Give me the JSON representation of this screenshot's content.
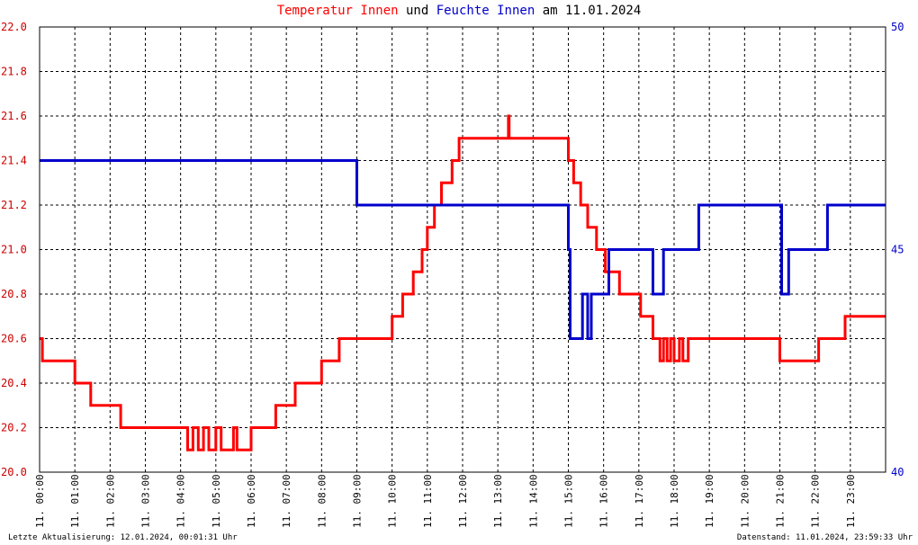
{
  "title": {
    "part1": "Temperatur Innen",
    "part2": " und ",
    "part3": "Feuchte Innen",
    "part4": " am 11.01.2024",
    "color1": "#ff0000",
    "color2": "#000000",
    "color3": "#0000cc",
    "color4": "#000000"
  },
  "footer": {
    "left": "Letzte Aktualisierung: 12.01.2024, 00:01:31 Uhr",
    "right": "Datenstand: 11.01.2024, 23:59:33 Uhr"
  },
  "chart_data": {
    "type": "line",
    "grid": true,
    "x_unit": "hours",
    "xlim": [
      0,
      24
    ],
    "x_tick_labels": [
      "11. 00:00",
      "11. 01:00",
      "11. 02:00",
      "11. 03:00",
      "11. 04:00",
      "11. 05:00",
      "11. 06:00",
      "11. 07:00",
      "11. 08:00",
      "11. 09:00",
      "11. 10:00",
      "11. 11:00",
      "11. 12:00",
      "11. 13:00",
      "11. 14:00",
      "11. 15:00",
      "11. 16:00",
      "11. 17:00",
      "11. 18:00",
      "11. 19:00",
      "11. 20:00",
      "11. 21:00",
      "11. 22:00",
      "11. 23:00"
    ],
    "y_left": {
      "range": [
        20.0,
        22.0
      ],
      "ticks": [
        "20.0",
        "20.2",
        "20.4",
        "20.6",
        "20.8",
        "21.0",
        "21.2",
        "21.4",
        "21.6",
        "21.8",
        "22.0"
      ],
      "color": "#cc0000"
    },
    "y_right": {
      "range": [
        40,
        50
      ],
      "ticks": [
        "40",
        "45",
        "50"
      ],
      "color": "#0000cc"
    },
    "series": [
      {
        "name": "Temperatur Innen",
        "axis": "left",
        "color": "#ff0000",
        "points": [
          [
            0.0,
            20.6
          ],
          [
            0.08,
            20.6
          ],
          [
            0.08,
            20.5
          ],
          [
            1.0,
            20.5
          ],
          [
            1.0,
            20.4
          ],
          [
            1.45,
            20.4
          ],
          [
            1.45,
            20.3
          ],
          [
            2.3,
            20.3
          ],
          [
            2.3,
            20.2
          ],
          [
            4.2,
            20.2
          ],
          [
            4.2,
            20.1
          ],
          [
            4.35,
            20.1
          ],
          [
            4.35,
            20.2
          ],
          [
            4.5,
            20.2
          ],
          [
            4.5,
            20.1
          ],
          [
            4.65,
            20.1
          ],
          [
            4.65,
            20.2
          ],
          [
            4.8,
            20.2
          ],
          [
            4.8,
            20.1
          ],
          [
            5.0,
            20.1
          ],
          [
            5.0,
            20.2
          ],
          [
            5.15,
            20.2
          ],
          [
            5.15,
            20.1
          ],
          [
            5.5,
            20.1
          ],
          [
            5.5,
            20.2
          ],
          [
            5.6,
            20.2
          ],
          [
            5.6,
            20.1
          ],
          [
            6.0,
            20.1
          ],
          [
            6.0,
            20.2
          ],
          [
            6.7,
            20.2
          ],
          [
            6.7,
            20.3
          ],
          [
            7.25,
            20.3
          ],
          [
            7.25,
            20.4
          ],
          [
            8.0,
            20.4
          ],
          [
            8.0,
            20.5
          ],
          [
            8.5,
            20.5
          ],
          [
            8.5,
            20.6
          ],
          [
            10.0,
            20.6
          ],
          [
            10.0,
            20.7
          ],
          [
            10.3,
            20.7
          ],
          [
            10.3,
            20.8
          ],
          [
            10.6,
            20.8
          ],
          [
            10.6,
            20.9
          ],
          [
            10.85,
            20.9
          ],
          [
            10.85,
            21.0
          ],
          [
            11.0,
            21.0
          ],
          [
            11.0,
            21.1
          ],
          [
            11.2,
            21.1
          ],
          [
            11.2,
            21.2
          ],
          [
            11.4,
            21.2
          ],
          [
            11.4,
            21.3
          ],
          [
            11.7,
            21.3
          ],
          [
            11.7,
            21.4
          ],
          [
            11.9,
            21.4
          ],
          [
            11.9,
            21.5
          ],
          [
            13.3,
            21.5
          ],
          [
            13.3,
            21.6
          ],
          [
            13.32,
            21.6
          ],
          [
            13.32,
            21.5
          ],
          [
            15.0,
            21.5
          ],
          [
            15.0,
            21.4
          ],
          [
            15.15,
            21.4
          ],
          [
            15.15,
            21.3
          ],
          [
            15.35,
            21.3
          ],
          [
            15.35,
            21.2
          ],
          [
            15.55,
            21.2
          ],
          [
            15.55,
            21.1
          ],
          [
            15.8,
            21.1
          ],
          [
            15.8,
            21.0
          ],
          [
            16.05,
            21.0
          ],
          [
            16.05,
            20.9
          ],
          [
            16.45,
            20.9
          ],
          [
            16.45,
            20.8
          ],
          [
            17.05,
            20.8
          ],
          [
            17.05,
            20.7
          ],
          [
            17.4,
            20.7
          ],
          [
            17.4,
            20.6
          ],
          [
            17.6,
            20.6
          ],
          [
            17.6,
            20.5
          ],
          [
            17.7,
            20.5
          ],
          [
            17.7,
            20.6
          ],
          [
            17.8,
            20.6
          ],
          [
            17.8,
            20.5
          ],
          [
            17.9,
            20.5
          ],
          [
            17.9,
            20.6
          ],
          [
            18.0,
            20.6
          ],
          [
            18.0,
            20.5
          ],
          [
            18.15,
            20.5
          ],
          [
            18.15,
            20.6
          ],
          [
            18.25,
            20.6
          ],
          [
            18.25,
            20.5
          ],
          [
            18.4,
            20.5
          ],
          [
            18.4,
            20.6
          ],
          [
            21.0,
            20.6
          ],
          [
            21.0,
            20.5
          ],
          [
            22.1,
            20.5
          ],
          [
            22.1,
            20.6
          ],
          [
            22.85,
            20.6
          ],
          [
            22.85,
            20.7
          ],
          [
            24.0,
            20.7
          ]
        ]
      },
      {
        "name": "Feuchte Innen",
        "axis": "right",
        "color": "#0000cc",
        "points": [
          [
            0.0,
            47
          ],
          [
            9.0,
            47
          ],
          [
            9.0,
            46
          ],
          [
            15.0,
            46
          ],
          [
            15.0,
            45
          ],
          [
            15.05,
            45
          ],
          [
            15.05,
            43
          ],
          [
            15.4,
            43
          ],
          [
            15.4,
            44
          ],
          [
            15.55,
            44
          ],
          [
            15.55,
            43
          ],
          [
            15.65,
            43
          ],
          [
            15.65,
            44
          ],
          [
            16.15,
            44
          ],
          [
            16.15,
            45
          ],
          [
            17.4,
            45
          ],
          [
            17.4,
            44
          ],
          [
            17.7,
            44
          ],
          [
            17.7,
            45
          ],
          [
            18.7,
            45
          ],
          [
            18.7,
            46
          ],
          [
            21.05,
            46
          ],
          [
            21.05,
            44
          ],
          [
            21.25,
            44
          ],
          [
            21.25,
            45
          ],
          [
            22.35,
            45
          ],
          [
            22.35,
            46
          ],
          [
            24.0,
            46
          ]
        ]
      }
    ]
  }
}
